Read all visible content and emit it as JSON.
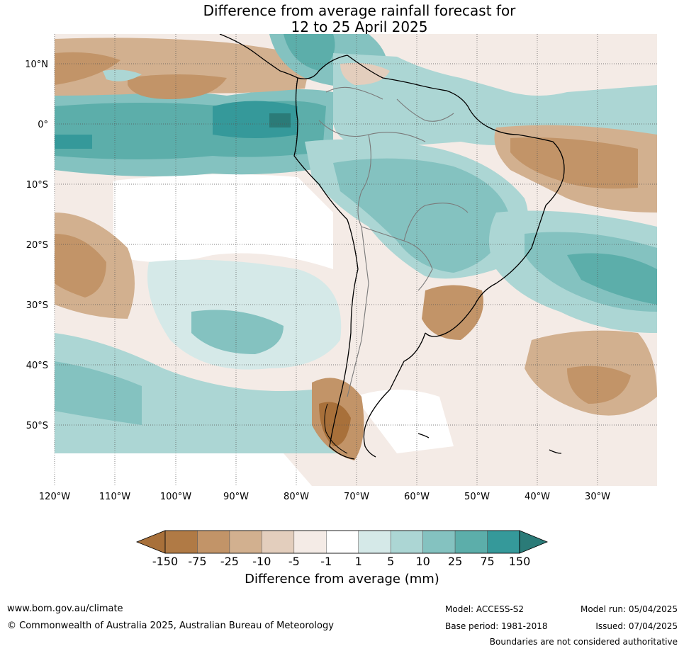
{
  "title": {
    "line1": "Difference from average rainfall forecast for",
    "line2": "12 to 25 April 2025"
  },
  "axes": {
    "lat_labels": [
      "10°N",
      "0°",
      "10°S",
      "20°S",
      "30°S",
      "40°S",
      "50°S"
    ],
    "lon_labels": [
      "120°W",
      "110°W",
      "100°W",
      "90°W",
      "80°W",
      "70°W",
      "60°W",
      "50°W",
      "40°W",
      "30°W"
    ]
  },
  "colorbar": {
    "title": "Difference from average (mm)",
    "tick_labels": [
      "-150",
      "-75",
      "-25",
      "-10",
      "-5",
      "-1",
      "1",
      "5",
      "10",
      "25",
      "75",
      "150"
    ],
    "colors": [
      "#a8703a",
      "#b07a45",
      "#c29468",
      "#d2b08f",
      "#e3cebd",
      "#f4ebe6",
      "#ffffff",
      "#d5e9e8",
      "#acd6d4",
      "#84c2c0",
      "#5caeaa",
      "#35999a",
      "#2b7b78"
    ]
  },
  "footer": {
    "website": "www.bom.gov.au/climate",
    "copyright": "© Commonwealth of Australia 2025, Australian Bureau of Meteorology",
    "model": "Model: ACCESS-S2",
    "base_period": "Base period: 1981-2018",
    "model_run": "Model run: 05/04/2025",
    "issued": "Issued: 07/04/2025",
    "disclaimer": "Boundaries are not considered authoritative"
  }
}
